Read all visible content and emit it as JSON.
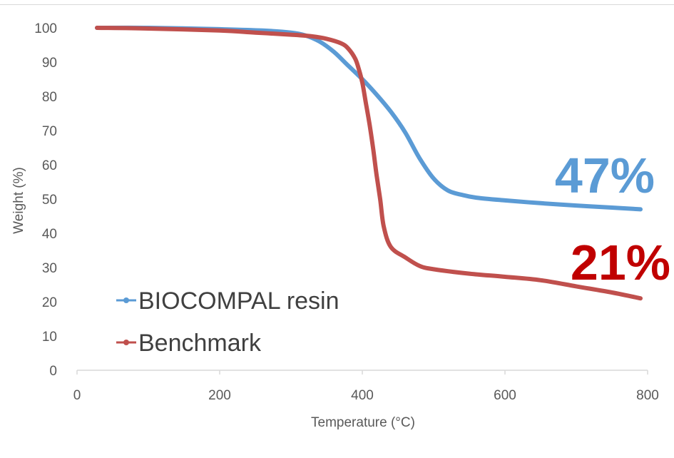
{
  "chart_data": {
    "type": "line",
    "xlabel": "Temperature (°C)",
    "ylabel": "Weight (%)",
    "xlim": [
      0,
      800
    ],
    "ylim": [
      0,
      100
    ],
    "xticks": [
      0,
      200,
      400,
      600,
      800
    ],
    "yticks": [
      0,
      10,
      20,
      30,
      40,
      50,
      60,
      70,
      80,
      90,
      100
    ],
    "grid": false,
    "legend_position": "bottom-left",
    "series": [
      {
        "name": "BIOCOMPAL resin",
        "color": "#5b9bd5",
        "x": [
          28,
          100,
          200,
          260,
          300,
          320,
          340,
          360,
          380,
          400,
          420,
          440,
          460,
          480,
          500,
          520,
          540,
          560,
          600,
          650,
          700,
          750,
          790
        ],
        "y": [
          100,
          100,
          99.6,
          99.2,
          98.6,
          97.8,
          96,
          93,
          89,
          85,
          80.5,
          75.5,
          69.5,
          62,
          56,
          52.5,
          51.2,
          50.4,
          49.6,
          48.8,
          48.1,
          47.5,
          47
        ],
        "end_annotation": "47%"
      },
      {
        "name": "Benchmark",
        "color": "#c0504d",
        "x": [
          28,
          100,
          200,
          250,
          300,
          330,
          350,
          370,
          380,
          390,
          395,
          400,
          405,
          410,
          415,
          420,
          425,
          430,
          440,
          460,
          480,
          500,
          550,
          600,
          650,
          700,
          750,
          790
        ],
        "y": [
          100,
          99.8,
          99.2,
          98.6,
          98,
          97.5,
          96.8,
          95.5,
          94,
          91,
          88,
          84,
          78,
          72,
          65,
          57,
          50,
          42,
          36,
          33,
          30.5,
          29.5,
          28.2,
          27.3,
          26.3,
          24.5,
          22.7,
          21
        ],
        "end_annotation": "21%"
      }
    ]
  }
}
